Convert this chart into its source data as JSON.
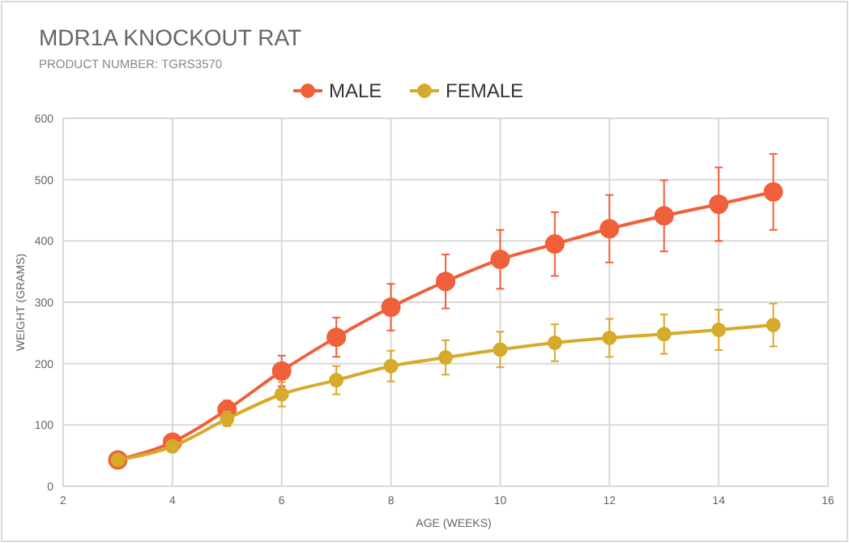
{
  "chart_data": {
    "type": "line",
    "title": "MDR1A KNOCKOUT RAT",
    "subtitle": "PRODUCT NUMBER: TGRS3570",
    "xlabel": "AGE (WEEKS)",
    "ylabel": "WEIGHT (GRAMS)",
    "x": [
      3,
      4,
      5,
      6,
      7,
      8,
      9,
      10,
      11,
      12,
      13,
      14,
      15
    ],
    "series": [
      {
        "name": "MALE",
        "color": "#f0603a",
        "values": [
          43,
          72,
          125,
          188,
          243,
          292,
          334,
          370,
          395,
          420,
          441,
          460,
          480
        ],
        "errors": [
          null,
          8,
          15,
          25,
          32,
          38,
          44,
          48,
          52,
          55,
          58,
          60,
          62
        ]
      },
      {
        "name": "FEMALE",
        "color": "#d6aa2a",
        "values": [
          43,
          65,
          110,
          150,
          173,
          196,
          210,
          223,
          234,
          242,
          248,
          255,
          263
        ],
        "errors": [
          null,
          7,
          12,
          20,
          23,
          25,
          28,
          29,
          30,
          31,
          32,
          33,
          35
        ]
      }
    ],
    "xlim": [
      2,
      16
    ],
    "xticks": [
      2,
      4,
      6,
      8,
      10,
      12,
      14,
      16
    ],
    "ylim": [
      0,
      600
    ],
    "yticks": [
      0,
      100,
      200,
      300,
      400,
      500,
      600
    ],
    "grid": true,
    "legend": "top",
    "marker": "circle",
    "line_style": "solid"
  }
}
